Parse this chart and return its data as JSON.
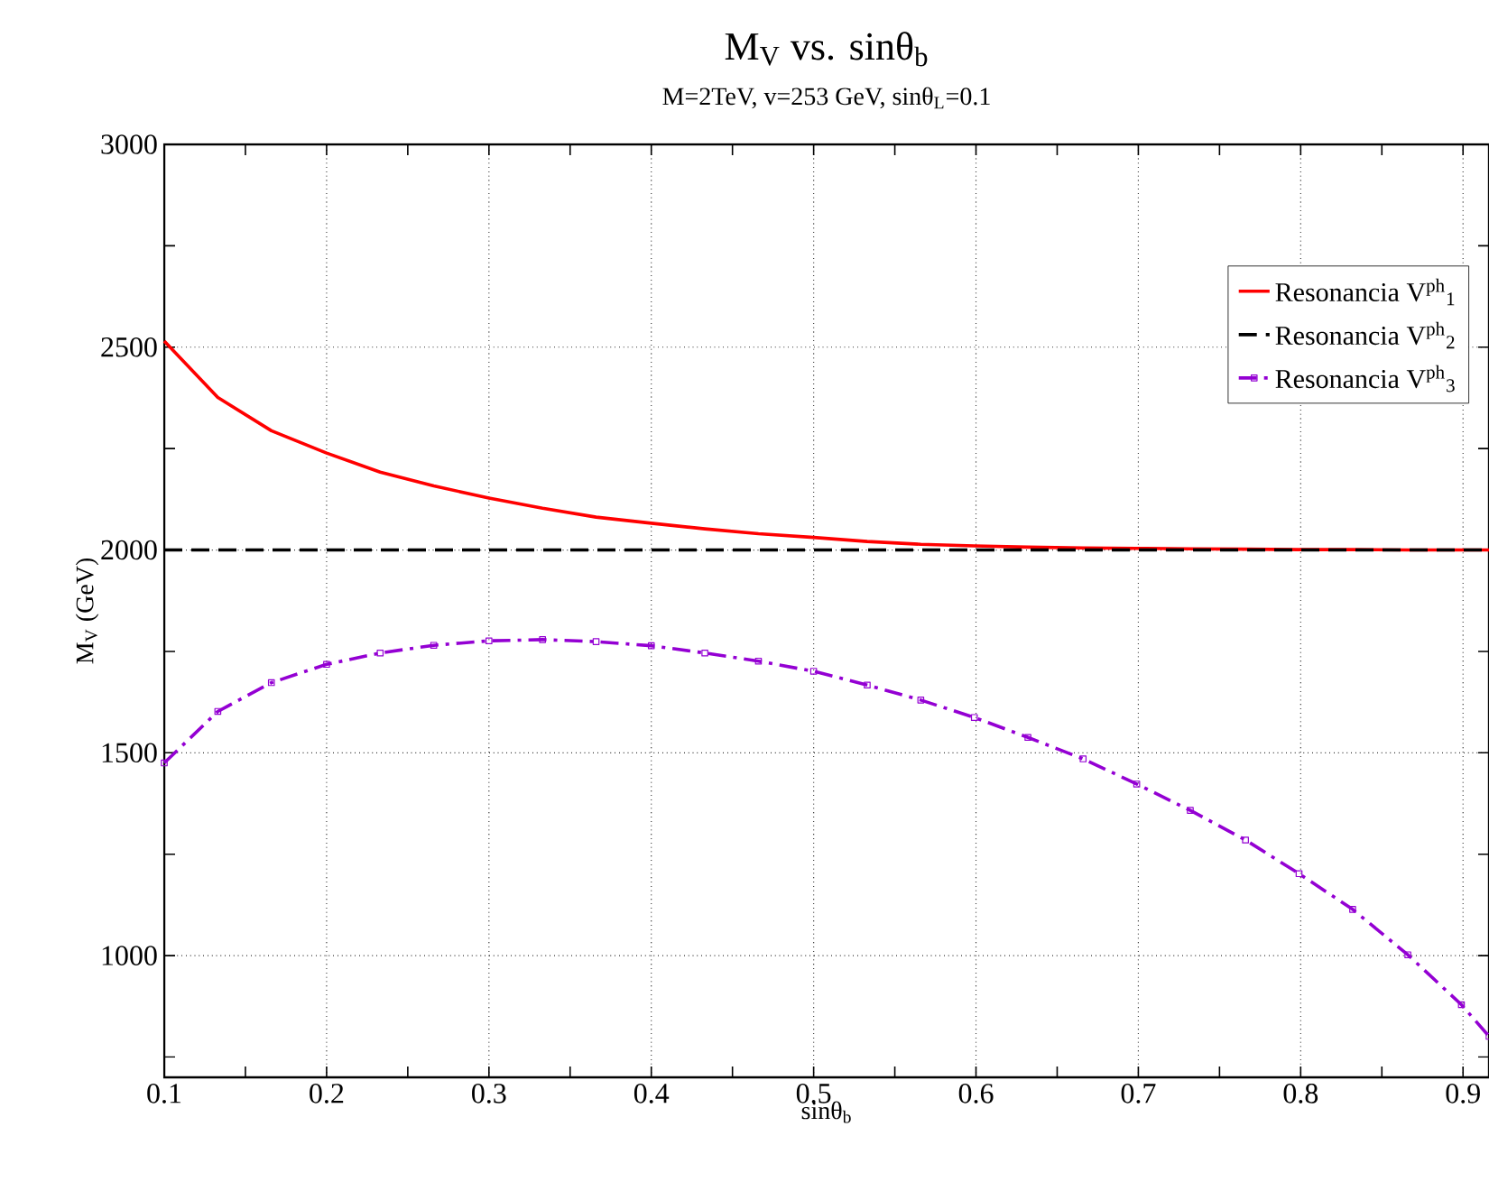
{
  "chart_data": {
    "type": "line",
    "title": "M$_{V}$ vs. sinθ$_{b}$",
    "subtitle": "M=2TeV, v=253 GeV, sinθ$_{L}$=0.1",
    "xlabel": "sinθ$_{b}$",
    "ylabel": "M$_{V}$ (GeV)",
    "x": [
      0.1,
      0.133,
      0.166,
      0.2,
      0.233,
      0.266,
      0.3,
      0.333,
      0.366,
      0.4,
      0.433,
      0.466,
      0.5,
      0.533,
      0.566,
      0.599,
      0.632,
      0.666,
      0.699,
      0.732,
      0.766,
      0.799,
      0.832,
      0.866,
      0.899,
      0.916
    ],
    "series": [
      {
        "name": "Resonancia V$^{ph}$$_{1}$",
        "color": "#ff0000",
        "line_style": "solid",
        "marker": "none",
        "values": [
          2515,
          2376,
          2294,
          2239,
          2192,
          2158,
          2128,
          2103,
          2081,
          2066,
          2052,
          2040,
          2031,
          2021,
          2014,
          2010,
          2007,
          2005,
          2004,
          2003,
          2002,
          2001,
          2001,
          2000,
          2000,
          2000
        ]
      },
      {
        "name": "Resonancia V$^{ph}$$_{2}$",
        "color": "#000000",
        "line_style": "dashed",
        "marker": "none",
        "values": [
          2000,
          2000,
          2000,
          2000,
          2000,
          2000,
          2000,
          2000,
          2000,
          2000,
          2000,
          2000,
          2000,
          2000,
          2000,
          2000,
          2000,
          2000,
          2000,
          2000,
          2000,
          2000,
          2000,
          2000,
          2000,
          2000
        ]
      },
      {
        "name": "Resonancia V$^{ph}$$_{3}$",
        "color": "#9400d3",
        "line_style": "dashdot",
        "marker": "square",
        "values": [
          1475,
          1602,
          1673,
          1718,
          1746,
          1765,
          1776,
          1779,
          1774,
          1764,
          1746,
          1726,
          1701,
          1667,
          1630,
          1587,
          1538,
          1485,
          1423,
          1358,
          1285,
          1202,
          1114,
          1002,
          879,
          801
        ]
      }
    ],
    "xlim": [
      0.1,
      0.916
    ],
    "ylim": [
      700,
      3000
    ],
    "xticks": [
      0.1,
      {
        "value": 0.15,
        "label": null
      },
      0.2,
      {
        "value": 0.25,
        "label": null
      },
      0.3,
      {
        "value": 0.35,
        "label": null
      },
      0.4,
      {
        "value": 0.45,
        "label": null
      },
      0.5,
      {
        "value": 0.55,
        "label": null
      },
      0.6,
      {
        "value": 0.65,
        "label": null
      },
      0.7,
      {
        "value": 0.75,
        "label": null
      },
      0.8,
      {
        "value": 0.85,
        "label": null
      },
      0.9
    ],
    "yticks": [
      {
        "value": 750,
        "label": null
      },
      1000,
      {
        "value": 1250,
        "label": null
      },
      1500,
      {
        "value": 1750,
        "label": null
      },
      2000,
      {
        "value": 2250,
        "label": null
      },
      2500,
      {
        "value": 2750,
        "label": null
      },
      3000
    ],
    "grid": true,
    "legend": "top right"
  }
}
